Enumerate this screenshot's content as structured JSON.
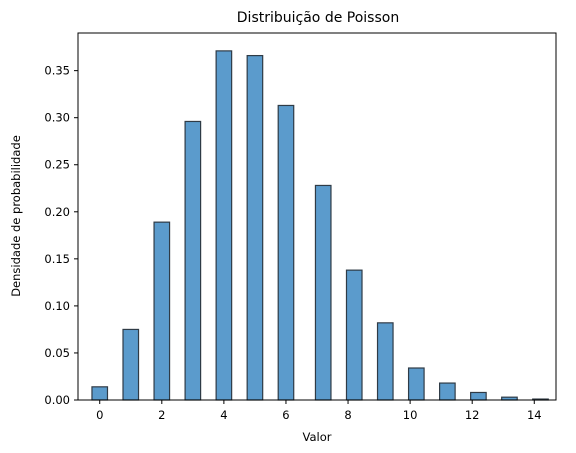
{
  "chart_data": {
    "type": "bar",
    "title": "Distribuição de Poisson",
    "xlabel": "Valor",
    "ylabel": "Densidade de probabilidade",
    "xlim": [
      -0.7,
      14.7
    ],
    "ylim": [
      0,
      0.39
    ],
    "xticks": [
      0,
      2,
      4,
      6,
      8,
      10,
      12,
      14
    ],
    "yticks": [
      0.0,
      0.05,
      0.1,
      0.15,
      0.2,
      0.25,
      0.3,
      0.35
    ],
    "ytick_labels": [
      "0.00",
      "0.05",
      "0.10",
      "0.15",
      "0.20",
      "0.25",
      "0.30",
      "0.35"
    ],
    "bar_color": "#5b9bcc",
    "bar_edge_color": "#2f3b46",
    "x": [
      0,
      1,
      2,
      3,
      4,
      5,
      6,
      7.2,
      8.2,
      9.2,
      10.2,
      11.2,
      12.2,
      13.2,
      14.2
    ],
    "values": [
      0.014,
      0.075,
      0.189,
      0.296,
      0.371,
      0.366,
      0.313,
      0.228,
      0.138,
      0.082,
      0.034,
      0.018,
      0.008,
      0.003,
      0.001
    ],
    "bar_width": 0.5,
    "grid": false
  }
}
